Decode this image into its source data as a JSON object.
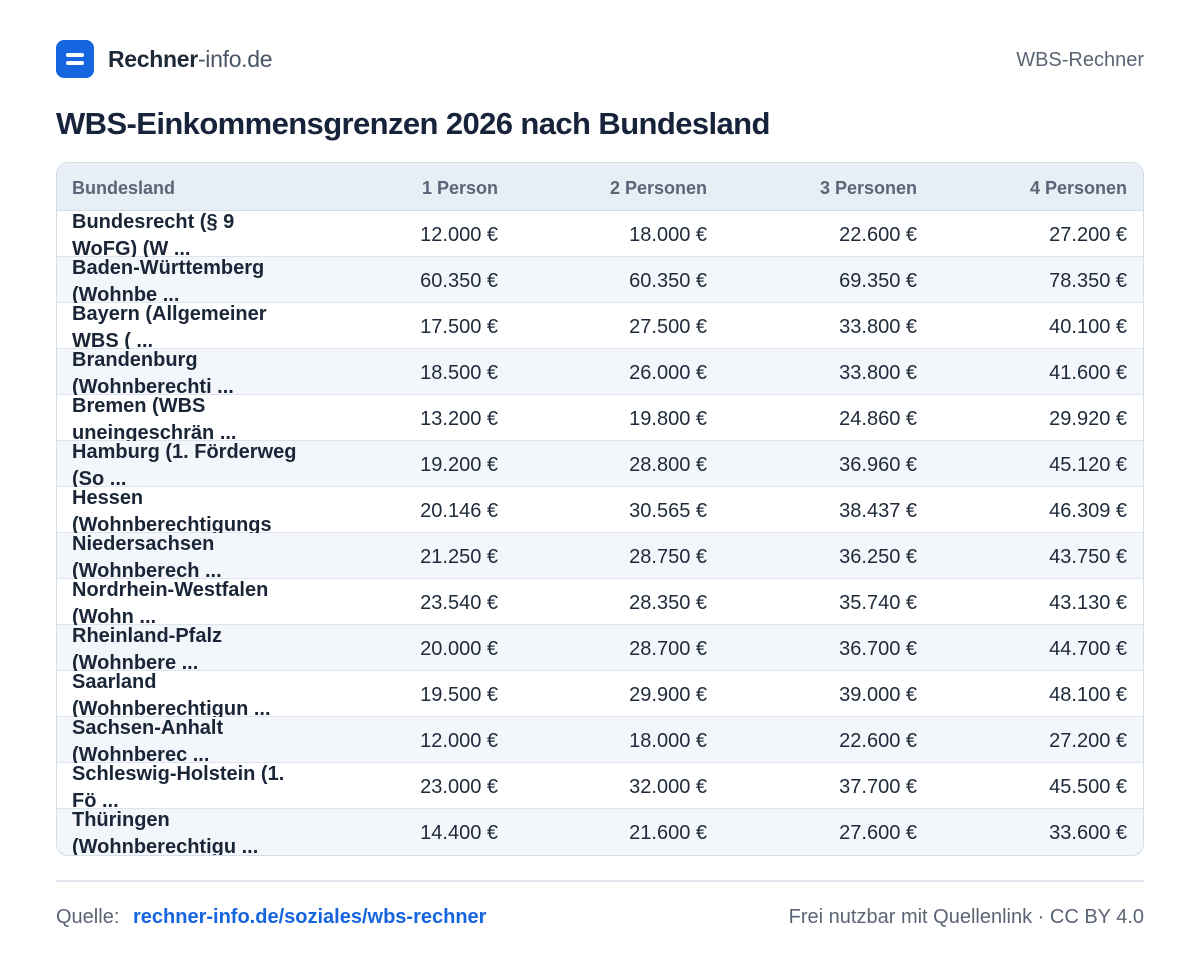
{
  "header": {
    "brand_strong": "Rechner",
    "brand_light": "-info.de",
    "right_label": "WBS-Rechner"
  },
  "title": "WBS-Einkommensgrenzen 2026 nach Bundesland",
  "table": {
    "columns": [
      "Bundesland",
      "1 Person",
      "2 Personen",
      "3 Personen",
      "4 Personen"
    ],
    "rows": [
      {
        "name": "Bundesrecht (§ 9 WoFG) (W ...",
        "p1": "12.000 €",
        "p2": "18.000 €",
        "p3": "22.600 €",
        "p4": "27.200 €"
      },
      {
        "name": "Baden-Württemberg (Wohnbe ...",
        "p1": "60.350 €",
        "p2": "60.350 €",
        "p3": "69.350 €",
        "p4": "78.350 €"
      },
      {
        "name": "Bayern (Allgemeiner WBS ( ...",
        "p1": "17.500 €",
        "p2": "27.500 €",
        "p3": "33.800 €",
        "p4": "40.100 €"
      },
      {
        "name": "Brandenburg (Wohnberechti ...",
        "p1": "18.500 €",
        "p2": "26.000 €",
        "p3": "33.800 €",
        "p4": "41.600 €"
      },
      {
        "name": "Bremen (WBS uneingeschrän ...",
        "p1": "13.200 €",
        "p2": "19.800 €",
        "p3": "24.860 €",
        "p4": "29.920 €"
      },
      {
        "name": "Hamburg (1. Förderweg (So ...",
        "p1": "19.200 €",
        "p2": "28.800 €",
        "p3": "36.960 €",
        "p4": "45.120 €"
      },
      {
        "name": "Hessen (Wohnberechtigungs",
        "p1": "20.146 €",
        "p2": "30.565 €",
        "p3": "38.437 €",
        "p4": "46.309 €"
      },
      {
        "name": "Niedersachsen (Wohnberech ...",
        "p1": "21.250 €",
        "p2": "28.750 €",
        "p3": "36.250 €",
        "p4": "43.750 €"
      },
      {
        "name": "Nordrhein-Westfalen (Wohn ...",
        "p1": "23.540 €",
        "p2": "28.350 €",
        "p3": "35.740 €",
        "p4": "43.130 €"
      },
      {
        "name": "Rheinland-Pfalz (Wohnbere ...",
        "p1": "20.000 €",
        "p2": "28.700 €",
        "p3": "36.700 €",
        "p4": "44.700 €"
      },
      {
        "name": "Saarland (Wohnberechtigun ...",
        "p1": "19.500 €",
        "p2": "29.900 €",
        "p3": "39.000 €",
        "p4": "48.100 €"
      },
      {
        "name": "Sachsen-Anhalt (Wohnberec ...",
        "p1": "12.000 €",
        "p2": "18.000 €",
        "p3": "22.600 €",
        "p4": "27.200 €"
      },
      {
        "name": "Schleswig-Holstein (1. Fö ...",
        "p1": "23.000 €",
        "p2": "32.000 €",
        "p3": "37.700 €",
        "p4": "45.500 €"
      },
      {
        "name": "Thüringen (Wohnberechtigu ...",
        "p1": "14.400 €",
        "p2": "21.600 €",
        "p3": "27.600 €",
        "p4": "33.600 €"
      }
    ]
  },
  "footer": {
    "source_label": "Quelle:",
    "source_link": "rechner-info.de/soziales/wbs-rechner",
    "right_text": "Frei nutzbar mit Quellenlink · CC BY 4.0"
  },
  "colors": {
    "accent": "#1565e0",
    "header_bg": "#e8eef6",
    "alt_row_bg": "#f3f7fb"
  }
}
